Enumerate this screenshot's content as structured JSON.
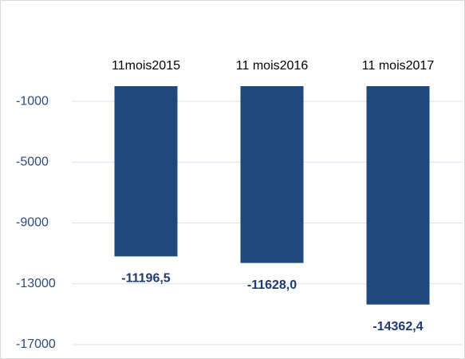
{
  "chart_data": {
    "type": "bar",
    "categories": [
      "11mois2015",
      "11 mois2016",
      "11 mois2017"
    ],
    "values": [
      -11196.5,
      -11628.0,
      -14362.4
    ],
    "value_labels": [
      "-11196,5",
      "-11628,0",
      "-14362,4"
    ],
    "color": "#1f497d",
    "ylim": [
      -17000,
      0
    ],
    "yticks": [
      -1000,
      -5000,
      -9000,
      -13000,
      -17000
    ],
    "grid": true
  }
}
